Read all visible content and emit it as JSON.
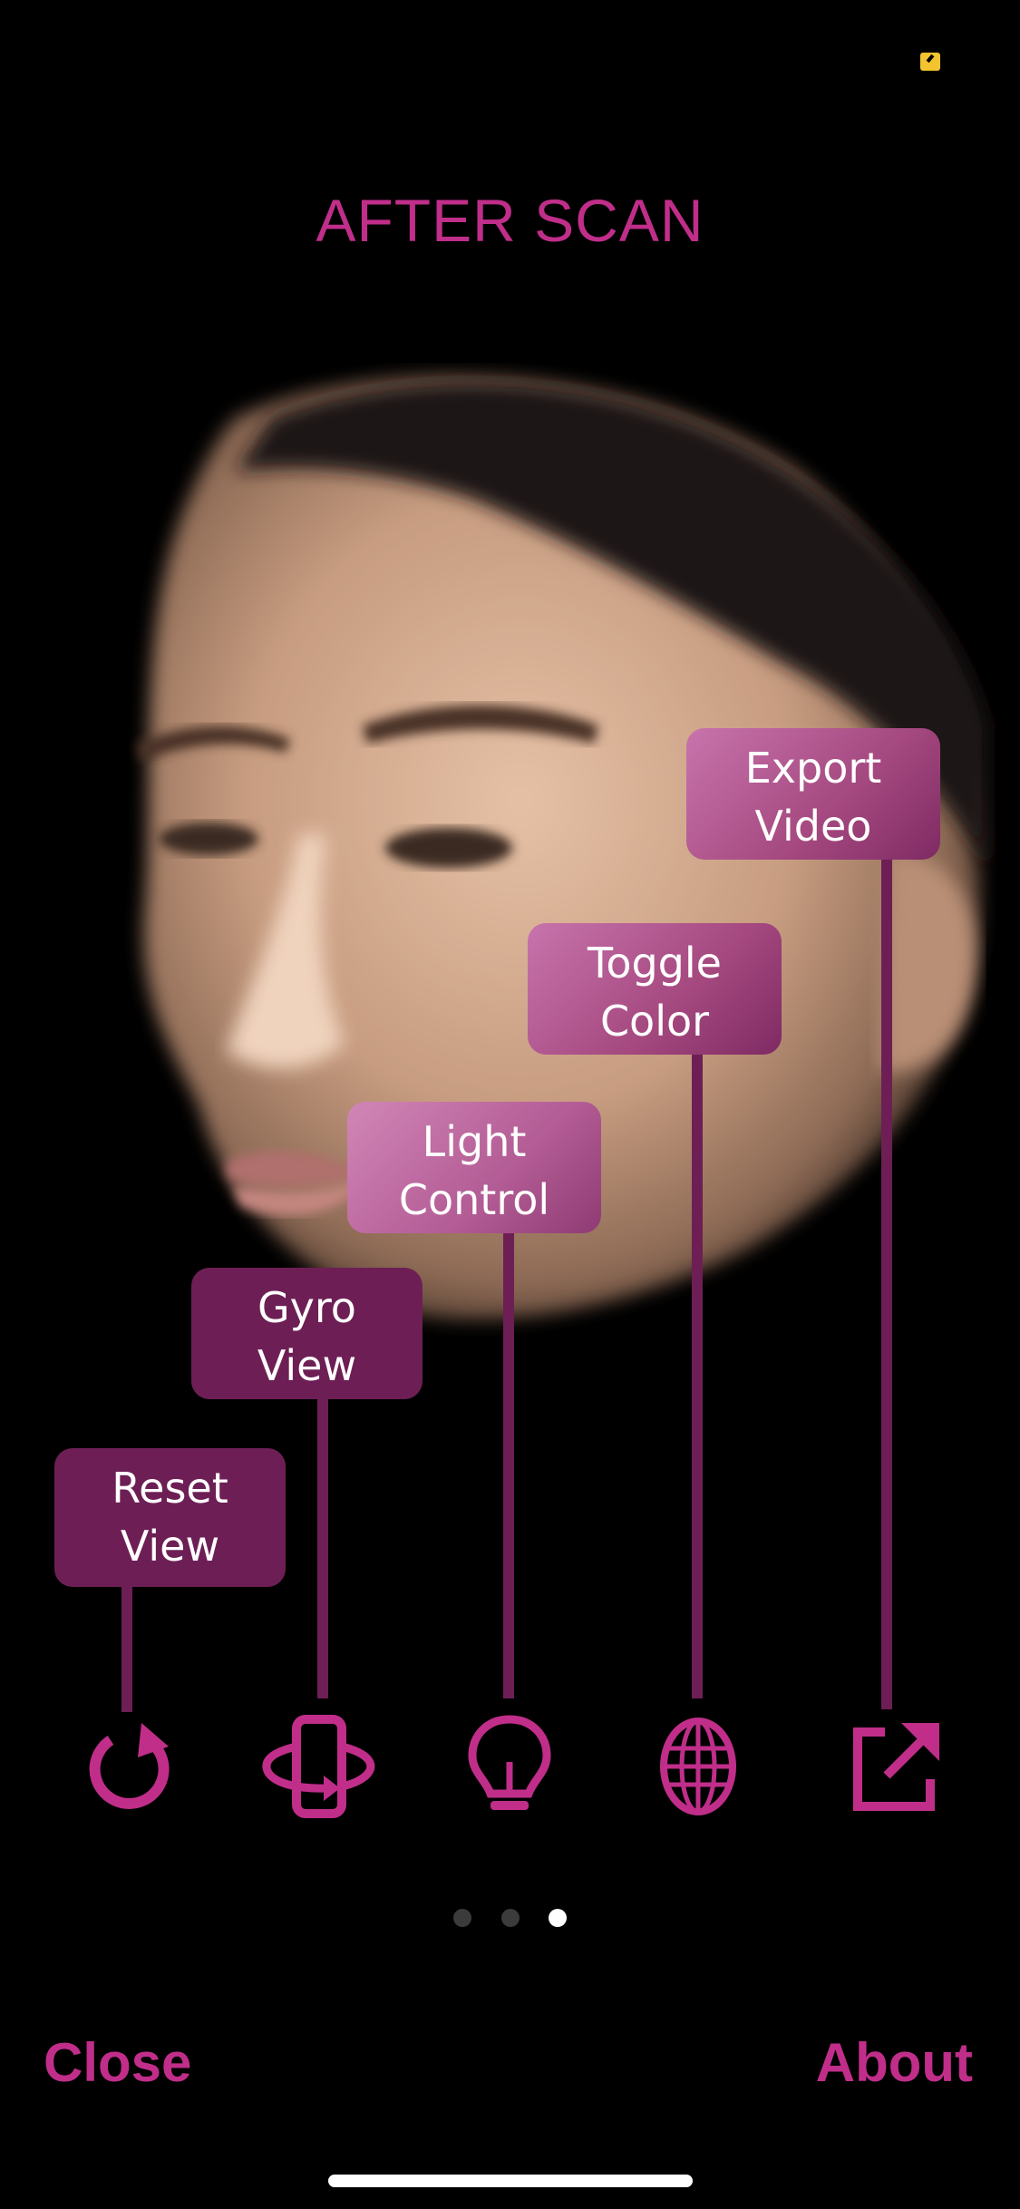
{
  "title": "AFTER SCAN",
  "tooltips": [
    {
      "label_line1": "Reset",
      "label_line2": "View",
      "icon": "reset-icon"
    },
    {
      "label_line1": "Gyro",
      "label_line2": "View",
      "icon": "gyro-phone-icon"
    },
    {
      "label_line1": "Light",
      "label_line2": "Control",
      "icon": "light-bulb-icon"
    },
    {
      "label_line1": "Toggle",
      "label_line2": "Color",
      "icon": "globe-mesh-icon"
    },
    {
      "label_line1": "Export",
      "label_line2": "Video",
      "icon": "export-icon"
    }
  ],
  "pagination": {
    "count": 3,
    "active_index": 2
  },
  "footer": {
    "close_label": "Close",
    "about_label": "About"
  },
  "colors": {
    "accent": "#c02e8a",
    "label_dark": "#6d1f55",
    "background": "#000000"
  }
}
